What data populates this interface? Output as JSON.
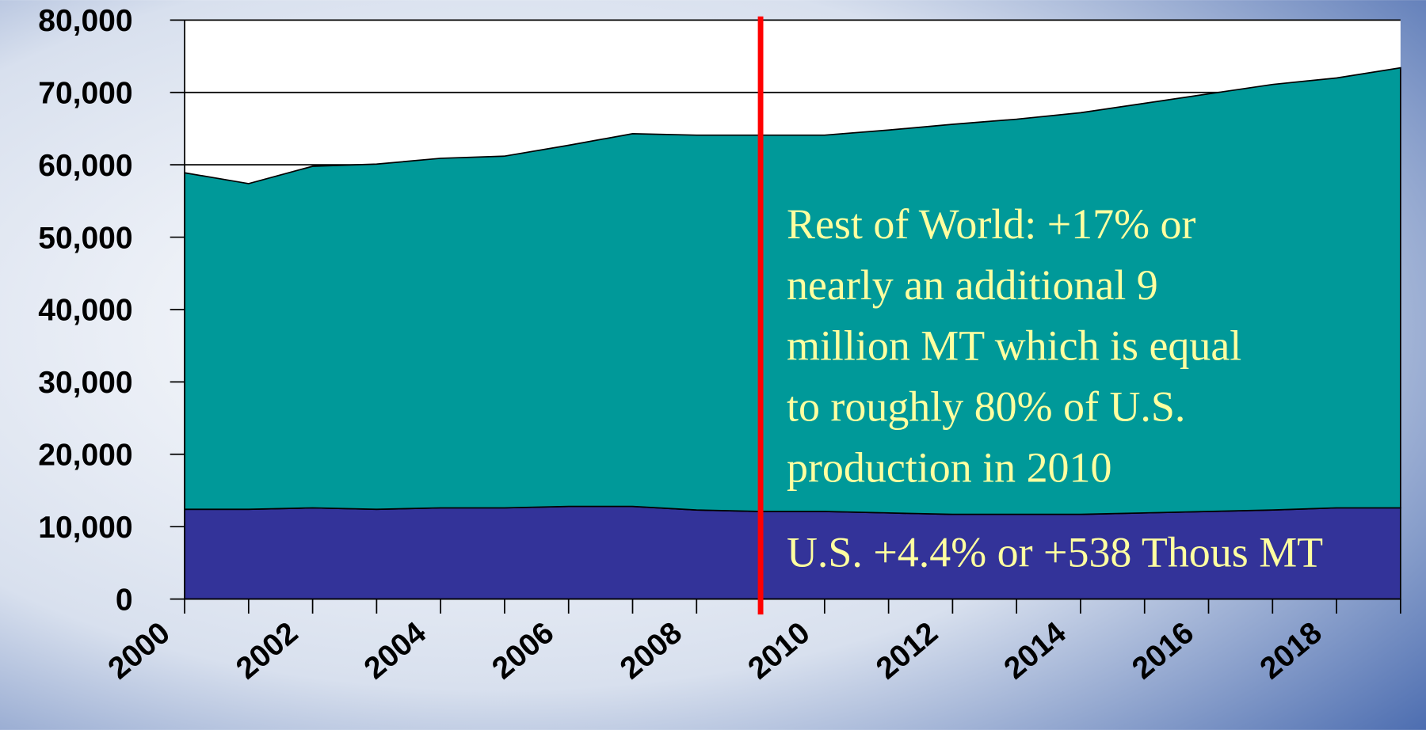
{
  "chart_data": {
    "type": "stacked-area",
    "x": [
      2000,
      2001,
      2002,
      2003,
      2004,
      2005,
      2006,
      2007,
      2008,
      2009,
      2010,
      2011,
      2012,
      2013,
      2014,
      2015,
      2016,
      2017,
      2018,
      2019
    ],
    "series": [
      {
        "color": "#333399",
        "values": [
          12400,
          12400,
          12600,
          12400,
          12600,
          12600,
          12800,
          12800,
          12300,
          12100,
          12100,
          11900,
          11700,
          11700,
          11700,
          11900,
          12100,
          12300,
          12600,
          12600
        ]
      },
      {
        "color": "#009999",
        "values": [
          46500,
          45000,
          47200,
          47700,
          48300,
          48600,
          49900,
          51500,
          51800,
          52000,
          52000,
          52900,
          53900,
          54600,
          55500,
          56600,
          57700,
          58800,
          59400,
          60800
        ]
      }
    ],
    "xlim": [
      2000,
      2019
    ],
    "xticks": [
      2000,
      2002,
      2004,
      2006,
      2008,
      2010,
      2012,
      2014,
      2016,
      2018
    ],
    "ylim": [
      0,
      80000
    ],
    "yticks": [
      {
        "value": 0,
        "label": "0"
      },
      {
        "value": 10000,
        "label": "10,000"
      },
      {
        "value": 20000,
        "label": "20,000"
      },
      {
        "value": 30000,
        "label": "30,000"
      },
      {
        "value": 40000,
        "label": "40,000"
      },
      {
        "value": 50000,
        "label": "50,000"
      },
      {
        "value": 60000,
        "label": "60,000"
      },
      {
        "value": 70000,
        "label": "70,000"
      },
      {
        "value": 80000,
        "label": "80,000"
      }
    ],
    "grid": true,
    "marker_x": 2009,
    "marker_color": "#ff0000",
    "annotations": [
      {
        "lines": [
          "Rest of World: +17% or",
          "nearly an additional 9",
          "million MT which is equal",
          "to roughly 80% of U.S.",
          "production in 2010"
        ]
      },
      {
        "lines": [
          "U.S. +4.4% or +538 Thous MT"
        ]
      }
    ]
  }
}
